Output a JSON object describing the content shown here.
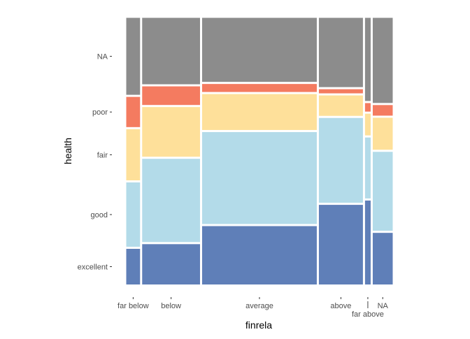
{
  "chart_data": {
    "type": "mosaic",
    "xlabel": "finrela",
    "ylabel": "health",
    "categories": [
      "far below",
      "below",
      "average",
      "above",
      "far above",
      "NA"
    ],
    "column_widths": [
      0.054,
      0.226,
      0.448,
      0.172,
      0.022,
      0.078
    ],
    "levels": [
      "excellent",
      "good",
      "fair",
      "poor",
      "NA"
    ],
    "level_colors": [
      "#5f7fb8",
      "#b3dbe9",
      "#fee09a",
      "#f47b60",
      "#8c8c8c"
    ],
    "proportions": [
      [
        0.138,
        0.249,
        0.198,
        0.117,
        0.298
      ],
      [
        0.156,
        0.322,
        0.192,
        0.072,
        0.257
      ],
      [
        0.226,
        0.356,
        0.139,
        0.031,
        0.248
      ],
      [
        0.308,
        0.328,
        0.079,
        0.016,
        0.268
      ],
      [
        0.325,
        0.236,
        0.084,
        0.033,
        0.322
      ],
      [
        0.2,
        0.306,
        0.124,
        0.041,
        0.33
      ]
    ],
    "grid": false,
    "legend": "none"
  }
}
